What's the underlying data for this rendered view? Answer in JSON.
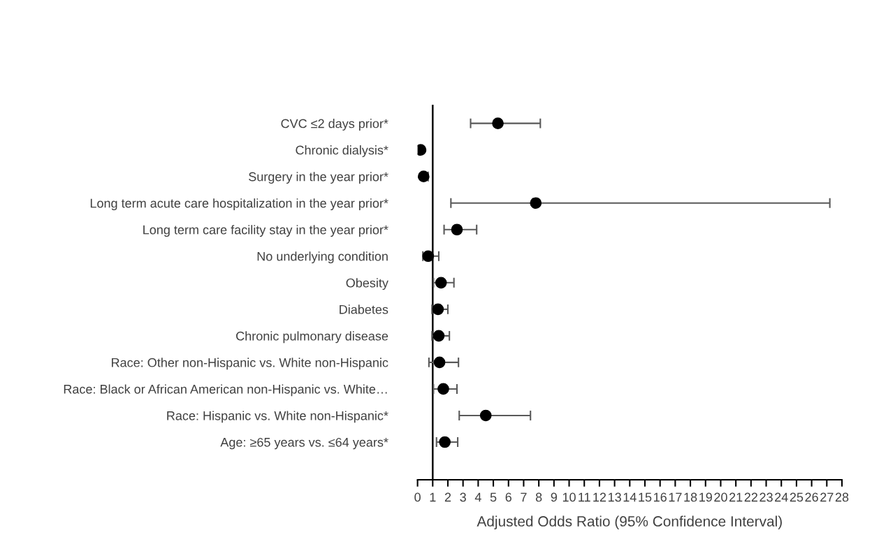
{
  "chart_data": {
    "type": "scatter",
    "orientation": "horizontal",
    "xlabel": "Adjusted Odds Ratio (95% Confidence Interval)",
    "categories": [
      "CVC ≤2 days prior*",
      "Chronic dialysis*",
      "Surgery in the year prior*",
      "Long term acute care hospitalization in the year prior*",
      "Long term care facility stay in the year prior*",
      "No underlying condition",
      "Obesity",
      "Diabetes",
      "Chronic pulmonary disease",
      "Race: Other non-Hispanic vs. White non-Hispanic",
      "Race: Black or African American non-Hispanic vs. White…",
      "Race: Hispanic vs. White non-Hispanic*",
      "Age: ≥65 years vs. ≤64 years*"
    ],
    "series": [
      {
        "color": "#000000",
        "values": [
          5.3,
          0.2,
          0.4,
          7.8,
          2.6,
          0.7,
          1.55,
          1.35,
          1.4,
          1.45,
          1.7,
          4.5,
          1.8
        ],
        "errors": [
          [
            3.5,
            8.1
          ],
          null,
          [
            0.3,
            0.7
          ],
          [
            2.2,
            27.2
          ],
          [
            1.75,
            3.9
          ],
          [
            0.35,
            1.4
          ],
          [
            1.05,
            2.4
          ],
          [
            0.95,
            2.0
          ],
          [
            0.95,
            2.1
          ],
          [
            0.75,
            2.7
          ],
          [
            1.05,
            2.6
          ],
          [
            2.75,
            7.45
          ],
          [
            1.25,
            2.65
          ]
        ]
      }
    ],
    "xlim": [
      0,
      28
    ],
    "xticks": [
      0,
      1,
      2,
      3,
      4,
      5,
      6,
      7,
      8,
      9,
      10,
      11,
      12,
      13,
      14,
      15,
      16,
      17,
      18,
      19,
      20,
      21,
      22,
      23,
      24,
      25,
      26,
      27,
      28
    ],
    "ref_lines": [
      {
        "axis": "x",
        "value": 1,
        "color": "#000000"
      }
    ],
    "marker": "circle",
    "grid": false,
    "legend": false
  }
}
